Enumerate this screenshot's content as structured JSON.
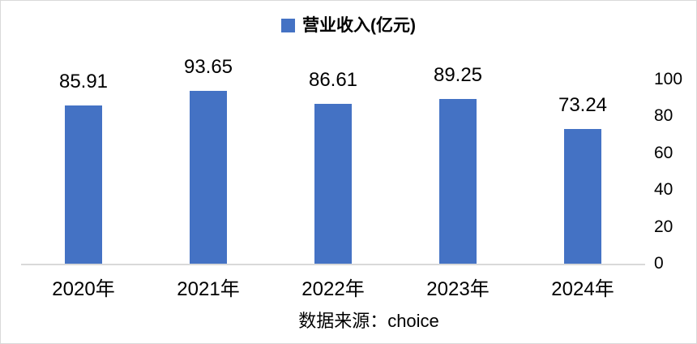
{
  "chart_data": {
    "type": "bar",
    "title": "",
    "legend": "营业收入(亿元)",
    "legend_position": "top",
    "categories": [
      "2020年",
      "2021年",
      "2022年",
      "2023年",
      "2024年"
    ],
    "values": [
      85.91,
      93.65,
      86.61,
      89.25,
      73.24
    ],
    "data_labels": [
      "85.91",
      "93.65",
      "86.61",
      "89.25",
      "73.24"
    ],
    "xlabel": "",
    "ylabel": "",
    "y_axis": {
      "side": "right",
      "min": 0,
      "max": 100,
      "ticks": [
        0,
        20,
        40,
        60,
        80,
        100
      ]
    },
    "grid": false,
    "bar_color": "#4472C4",
    "axis_line_color": "#D9D9D9",
    "text_color": "#000000",
    "caption": "数据来源：choice"
  }
}
